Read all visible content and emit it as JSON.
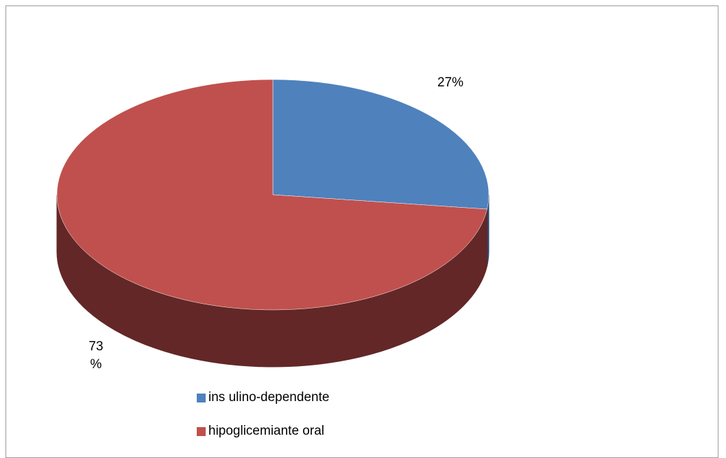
{
  "chart_data": {
    "type": "pie",
    "title": "",
    "style": "3d",
    "categories": [
      "insulino-dependente",
      "hipoglicemiante oral"
    ],
    "values": [
      27,
      73
    ],
    "data_labels": [
      "27%",
      "73\n%"
    ],
    "colors": [
      "#4F81BD",
      "#C0504D"
    ],
    "side_colors": [
      "#2E4B73",
      "#632727"
    ],
    "legend_position": "bottom"
  },
  "legend": {
    "items": [
      {
        "label": "ins ulino-dependente",
        "color": "#4F81BD"
      },
      {
        "label": "hipoglicemiante oral",
        "color": "#C0504D"
      }
    ]
  }
}
